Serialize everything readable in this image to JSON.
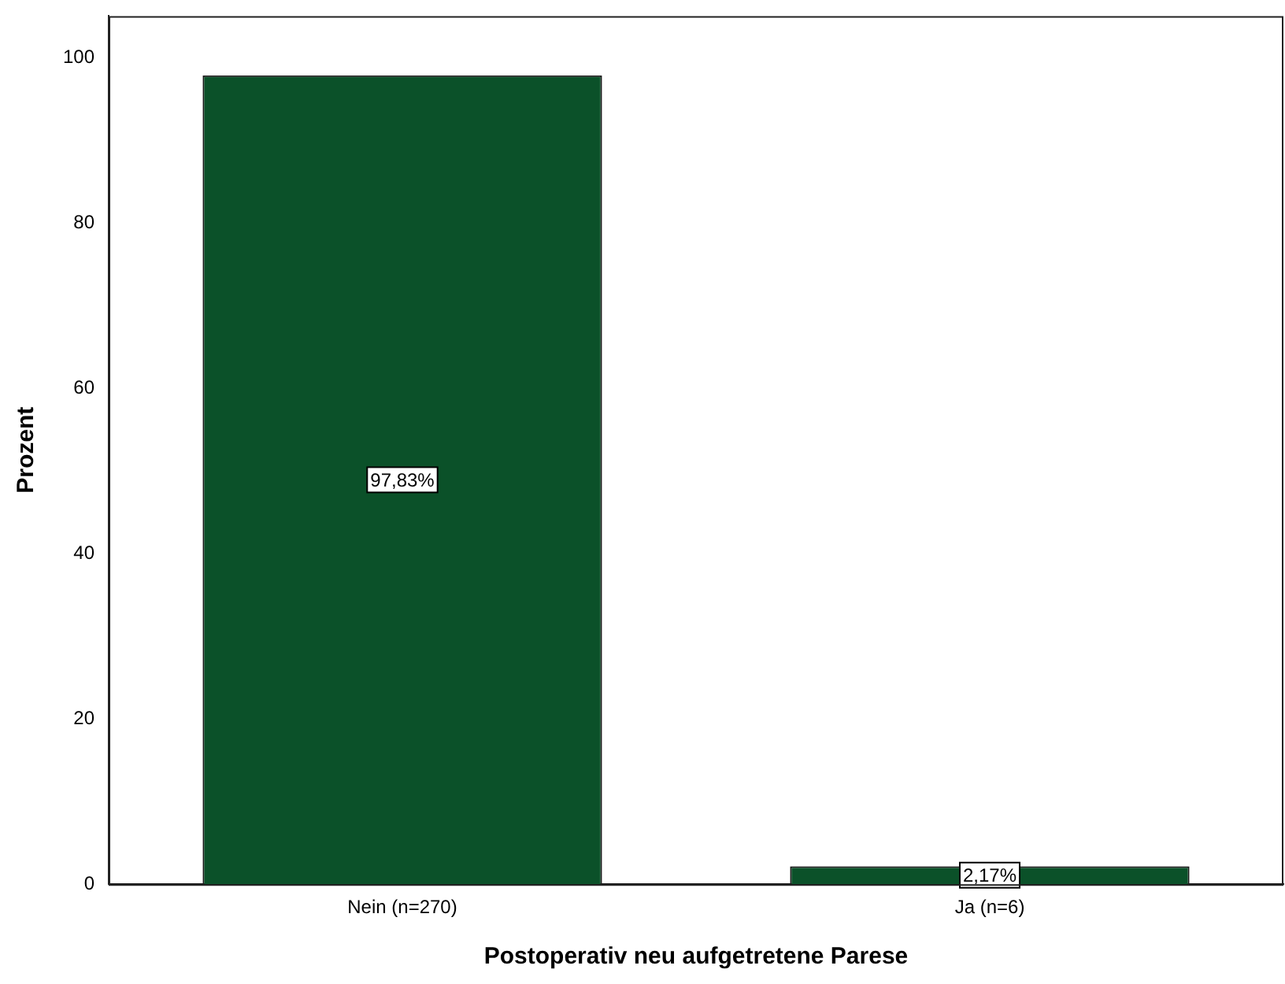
{
  "chart_data": {
    "type": "bar",
    "xlabel": "Postoperativ neu aufgetretene Parese",
    "ylabel": "Prozent",
    "categories": [
      "Nein (n=270)",
      "Ja (n=6)"
    ],
    "values": [
      97.83,
      2.17
    ],
    "value_labels": [
      "97,83%",
      "2,17%"
    ],
    "color": "#0b5129",
    "ylim": [
      0,
      105
    ],
    "yticks": [
      0,
      20,
      40,
      60,
      80,
      100
    ],
    "grid": false,
    "legend": false
  }
}
